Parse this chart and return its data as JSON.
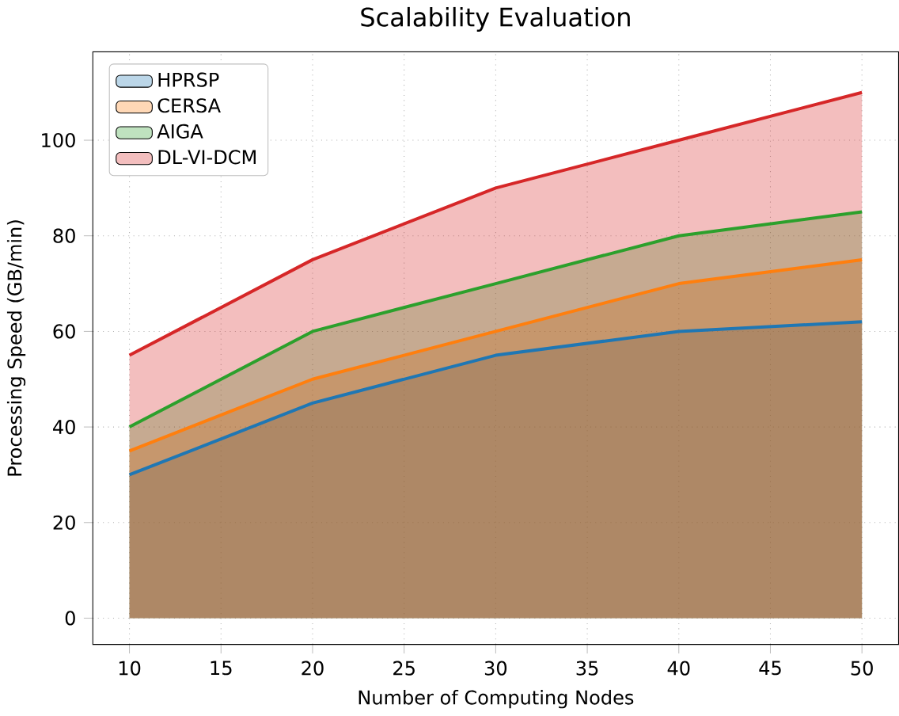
{
  "chart_data": {
    "type": "area",
    "title": "Scalability Evaluation",
    "xlabel": "Number of Computing Nodes",
    "ylabel": "Processing Speed (GB/min)",
    "x": [
      10,
      20,
      30,
      40,
      50
    ],
    "series": [
      {
        "name": "HPRSP",
        "color": "#1f77b4",
        "values": [
          30,
          45,
          55,
          60,
          62
        ]
      },
      {
        "name": "CERSA",
        "color": "#ff7f0e",
        "values": [
          35,
          50,
          60,
          70,
          75
        ]
      },
      {
        "name": "AIGA",
        "color": "#2ca02c",
        "values": [
          40,
          60,
          70,
          80,
          85
        ]
      },
      {
        "name": "DL-VI-DCM",
        "color": "#d62728",
        "values": [
          55,
          75,
          90,
          100,
          110
        ]
      }
    ],
    "xlim": [
      8,
      52
    ],
    "ylim": [
      -5.5,
      118.5
    ],
    "xticks": [
      10,
      15,
      20,
      25,
      30,
      35,
      40,
      45,
      50
    ],
    "yticks": [
      0,
      20,
      40,
      60,
      80,
      100
    ],
    "grid": true,
    "legend": "top left"
  }
}
